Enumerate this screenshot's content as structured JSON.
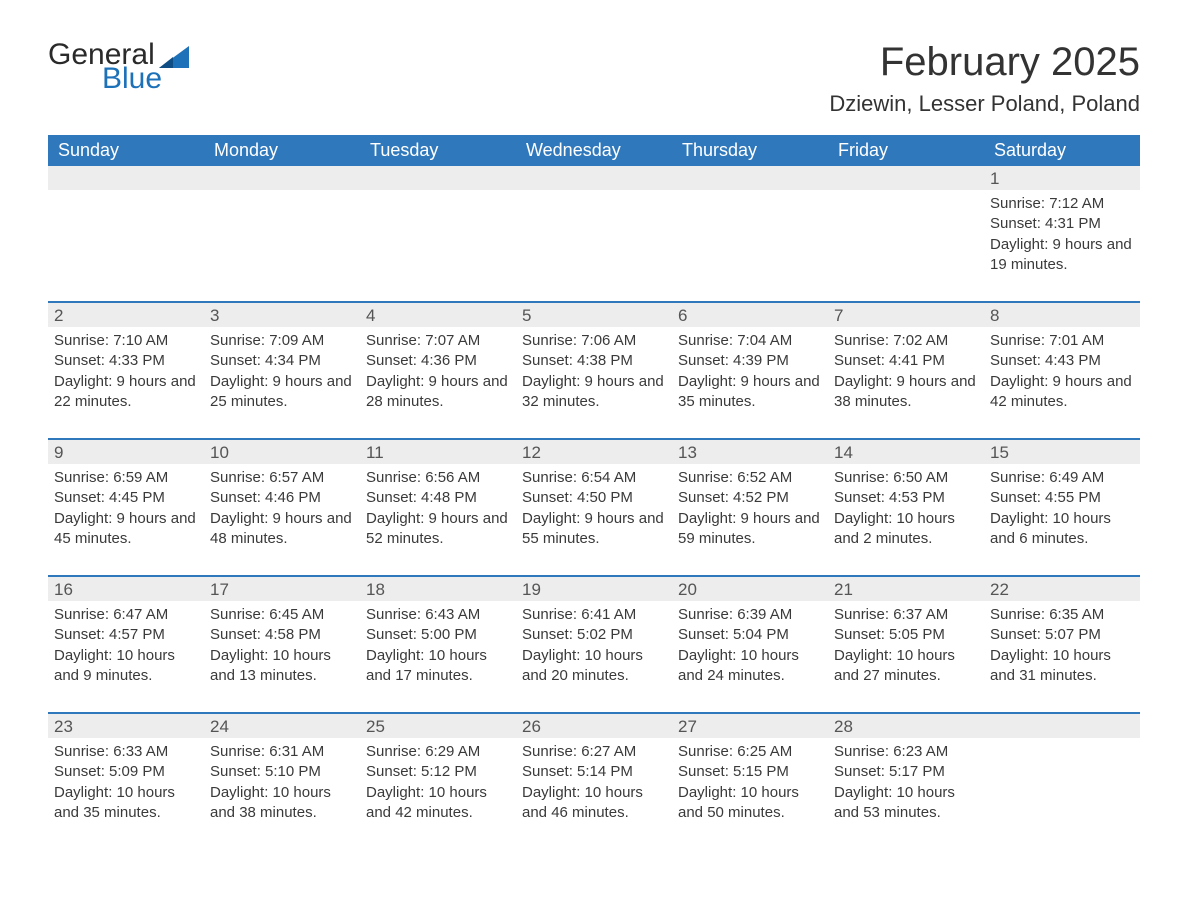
{
  "logo": {
    "text1": "General",
    "text2": "Blue",
    "flag_color": "#1d71b8"
  },
  "title": "February 2025",
  "location": "Dziewin, Lesser Poland, Poland",
  "colors": {
    "header_bg": "#2f78bc",
    "header_text": "#ffffff",
    "row_border": "#2f78bc",
    "daynum_bg": "#ededed",
    "text": "#3a3a3a",
    "brand_blue": "#1d71b8"
  },
  "day_headers": [
    "Sunday",
    "Monday",
    "Tuesday",
    "Wednesday",
    "Thursday",
    "Friday",
    "Saturday"
  ],
  "labels": {
    "sunrise": "Sunrise: ",
    "sunset": "Sunset: ",
    "daylight": "Daylight: "
  },
  "weeks": [
    [
      {
        "empty": true
      },
      {
        "empty": true
      },
      {
        "empty": true
      },
      {
        "empty": true
      },
      {
        "empty": true
      },
      {
        "empty": true
      },
      {
        "d": "1",
        "sunrise": "7:12 AM",
        "sunset": "4:31 PM",
        "daylight": "9 hours and 19 minutes."
      }
    ],
    [
      {
        "d": "2",
        "sunrise": "7:10 AM",
        "sunset": "4:33 PM",
        "daylight": "9 hours and 22 minutes."
      },
      {
        "d": "3",
        "sunrise": "7:09 AM",
        "sunset": "4:34 PM",
        "daylight": "9 hours and 25 minutes."
      },
      {
        "d": "4",
        "sunrise": "7:07 AM",
        "sunset": "4:36 PM",
        "daylight": "9 hours and 28 minutes."
      },
      {
        "d": "5",
        "sunrise": "7:06 AM",
        "sunset": "4:38 PM",
        "daylight": "9 hours and 32 minutes."
      },
      {
        "d": "6",
        "sunrise": "7:04 AM",
        "sunset": "4:39 PM",
        "daylight": "9 hours and 35 minutes."
      },
      {
        "d": "7",
        "sunrise": "7:02 AM",
        "sunset": "4:41 PM",
        "daylight": "9 hours and 38 minutes."
      },
      {
        "d": "8",
        "sunrise": "7:01 AM",
        "sunset": "4:43 PM",
        "daylight": "9 hours and 42 minutes."
      }
    ],
    [
      {
        "d": "9",
        "sunrise": "6:59 AM",
        "sunset": "4:45 PM",
        "daylight": "9 hours and 45 minutes."
      },
      {
        "d": "10",
        "sunrise": "6:57 AM",
        "sunset": "4:46 PM",
        "daylight": "9 hours and 48 minutes."
      },
      {
        "d": "11",
        "sunrise": "6:56 AM",
        "sunset": "4:48 PM",
        "daylight": "9 hours and 52 minutes."
      },
      {
        "d": "12",
        "sunrise": "6:54 AM",
        "sunset": "4:50 PM",
        "daylight": "9 hours and 55 minutes."
      },
      {
        "d": "13",
        "sunrise": "6:52 AM",
        "sunset": "4:52 PM",
        "daylight": "9 hours and 59 minutes."
      },
      {
        "d": "14",
        "sunrise": "6:50 AM",
        "sunset": "4:53 PM",
        "daylight": "10 hours and 2 minutes."
      },
      {
        "d": "15",
        "sunrise": "6:49 AM",
        "sunset": "4:55 PM",
        "daylight": "10 hours and 6 minutes."
      }
    ],
    [
      {
        "d": "16",
        "sunrise": "6:47 AM",
        "sunset": "4:57 PM",
        "daylight": "10 hours and 9 minutes."
      },
      {
        "d": "17",
        "sunrise": "6:45 AM",
        "sunset": "4:58 PM",
        "daylight": "10 hours and 13 minutes."
      },
      {
        "d": "18",
        "sunrise": "6:43 AM",
        "sunset": "5:00 PM",
        "daylight": "10 hours and 17 minutes."
      },
      {
        "d": "19",
        "sunrise": "6:41 AM",
        "sunset": "5:02 PM",
        "daylight": "10 hours and 20 minutes."
      },
      {
        "d": "20",
        "sunrise": "6:39 AM",
        "sunset": "5:04 PM",
        "daylight": "10 hours and 24 minutes."
      },
      {
        "d": "21",
        "sunrise": "6:37 AM",
        "sunset": "5:05 PM",
        "daylight": "10 hours and 27 minutes."
      },
      {
        "d": "22",
        "sunrise": "6:35 AM",
        "sunset": "5:07 PM",
        "daylight": "10 hours and 31 minutes."
      }
    ],
    [
      {
        "d": "23",
        "sunrise": "6:33 AM",
        "sunset": "5:09 PM",
        "daylight": "10 hours and 35 minutes."
      },
      {
        "d": "24",
        "sunrise": "6:31 AM",
        "sunset": "5:10 PM",
        "daylight": "10 hours and 38 minutes."
      },
      {
        "d": "25",
        "sunrise": "6:29 AM",
        "sunset": "5:12 PM",
        "daylight": "10 hours and 42 minutes."
      },
      {
        "d": "26",
        "sunrise": "6:27 AM",
        "sunset": "5:14 PM",
        "daylight": "10 hours and 46 minutes."
      },
      {
        "d": "27",
        "sunrise": "6:25 AM",
        "sunset": "5:15 PM",
        "daylight": "10 hours and 50 minutes."
      },
      {
        "d": "28",
        "sunrise": "6:23 AM",
        "sunset": "5:17 PM",
        "daylight": "10 hours and 53 minutes."
      },
      {
        "empty": true
      }
    ]
  ]
}
